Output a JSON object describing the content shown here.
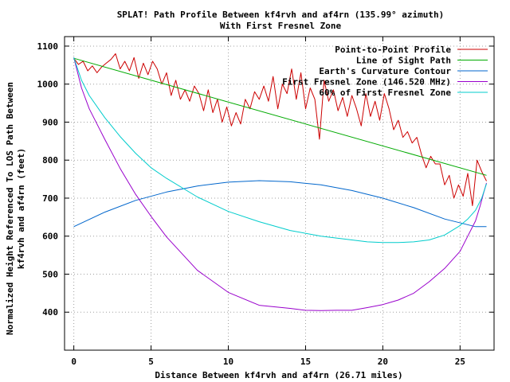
{
  "chart_data": {
    "type": "line",
    "title": "SPLAT! Path Profile Between kf4rvh and af4rn (135.99° azimuth)",
    "subtitle": "With First Fresnel Zone",
    "xlabel": "Distance Between kf4rvh and af4rn (26.71 miles)",
    "ylabel_line1": "Normalized Height Referenced To LOS Path Between",
    "ylabel_line2": "kf4rvh and af4rn (feet)",
    "xlim": [
      -0.6,
      27.2
    ],
    "ylim": [
      300,
      1125
    ],
    "xticks": [
      0,
      5,
      10,
      15,
      20,
      25
    ],
    "yticks": [
      400,
      500,
      600,
      700,
      800,
      900,
      1000,
      1100
    ],
    "grid": true,
    "legend_position": "top-right",
    "series": [
      {
        "name": "Point-to-Point Profile",
        "color": "#cc0000",
        "x": [
          0.0,
          0.3,
          0.6,
          0.9,
          1.2,
          1.5,
          1.8,
          2.1,
          2.4,
          2.7,
          3.0,
          3.3,
          3.6,
          3.9,
          4.2,
          4.5,
          4.8,
          5.1,
          5.4,
          5.7,
          6.0,
          6.3,
          6.6,
          6.9,
          7.2,
          7.5,
          7.8,
          8.1,
          8.4,
          8.7,
          9.0,
          9.3,
          9.6,
          9.9,
          10.2,
          10.5,
          10.8,
          11.1,
          11.4,
          11.7,
          12.0,
          12.3,
          12.6,
          12.9,
          13.2,
          13.5,
          13.8,
          14.1,
          14.4,
          14.7,
          15.0,
          15.3,
          15.6,
          15.9,
          16.2,
          16.5,
          16.8,
          17.1,
          17.4,
          17.7,
          18.0,
          18.3,
          18.6,
          18.9,
          19.2,
          19.5,
          19.8,
          20.1,
          20.4,
          20.7,
          21.0,
          21.3,
          21.6,
          21.9,
          22.2,
          22.5,
          22.8,
          23.1,
          23.4,
          23.7,
          24.0,
          24.3,
          24.6,
          24.9,
          25.2,
          25.5,
          25.8,
          26.1,
          26.4,
          26.71
        ],
        "values": [
          1068,
          1052,
          1060,
          1035,
          1048,
          1030,
          1045,
          1055,
          1065,
          1080,
          1040,
          1060,
          1035,
          1070,
          1015,
          1055,
          1025,
          1060,
          1040,
          1000,
          1030,
          970,
          1010,
          960,
          985,
          955,
          995,
          975,
          930,
          985,
          925,
          960,
          900,
          940,
          890,
          925,
          895,
          960,
          935,
          980,
          960,
          995,
          955,
          1020,
          935,
          1000,
          975,
          1040,
          960,
          1030,
          935,
          990,
          960,
          855,
          1010,
          955,
          985,
          930,
          965,
          915,
          970,
          935,
          890,
          975,
          915,
          955,
          905,
          975,
          935,
          880,
          905,
          860,
          875,
          845,
          860,
          815,
          780,
          810,
          790,
          790,
          735,
          760,
          700,
          735,
          705,
          765,
          680,
          800,
          770,
          745
        ]
      },
      {
        "name": "Line of Sight Path",
        "color": "#00aa00",
        "x": [
          0,
          26.71
        ],
        "values": [
          1068,
          760
        ]
      },
      {
        "name": "Earth's Curvature Contour",
        "color": "#0066cc",
        "x": [
          0,
          2,
          4,
          6,
          8,
          10,
          12,
          14,
          16,
          18,
          20,
          22,
          24,
          26,
          26.71
        ],
        "values": [
          625,
          663,
          694,
          716,
          732,
          742,
          746,
          743,
          735,
          720,
          700,
          675,
          645,
          625,
          625
        ]
      },
      {
        "name": "First Fresnel Zone (146.520 MHz)",
        "color": "#9900cc",
        "x": [
          0,
          0.5,
          1,
          2,
          3,
          4,
          5,
          6,
          8,
          10,
          12,
          14,
          15,
          16,
          17,
          18,
          19,
          20,
          21,
          22,
          23,
          24,
          25,
          25.5,
          26,
          26.3,
          26.5,
          26.71
        ],
        "values": [
          1070,
          990,
          935,
          855,
          778,
          710,
          652,
          598,
          510,
          452,
          418,
          410,
          405,
          404,
          405,
          405,
          412,
          420,
          432,
          450,
          480,
          515,
          560,
          600,
          640,
          680,
          710,
          740
        ]
      },
      {
        "name": "60% of First Fresnel Zone",
        "color": "#00cccc",
        "x": [
          0,
          0.5,
          1,
          2,
          3,
          4,
          5,
          6,
          8,
          10,
          12,
          14,
          16,
          18,
          19,
          20,
          21,
          22,
          23,
          24,
          25,
          25.5,
          26,
          26.4,
          26.71
        ],
        "values": [
          1070,
          1010,
          970,
          912,
          862,
          818,
          780,
          752,
          703,
          665,
          638,
          615,
          600,
          590,
          585,
          583,
          583,
          585,
          590,
          603,
          628,
          645,
          668,
          700,
          738
        ]
      }
    ]
  }
}
